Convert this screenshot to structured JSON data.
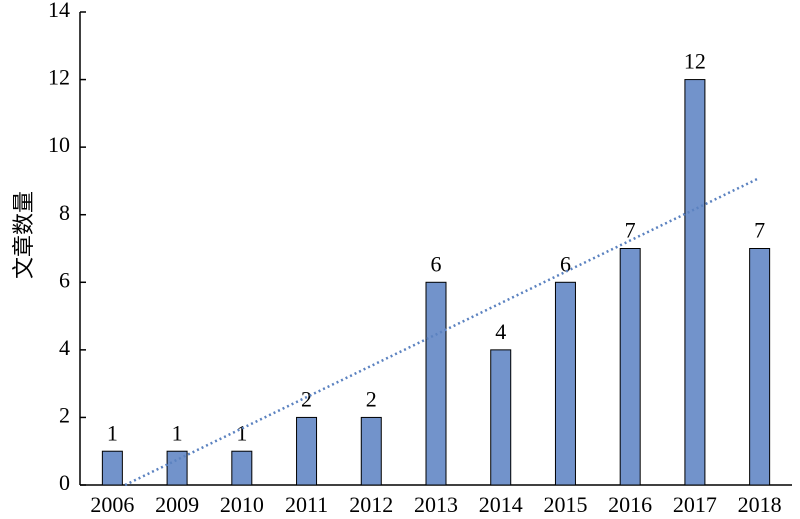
{
  "chart_data": {
    "type": "bar",
    "y_label": "文章数量",
    "categories": [
      "2006",
      "2009",
      "2010",
      "2011",
      "2012",
      "2013",
      "2014",
      "2015",
      "2016",
      "2017",
      "2018"
    ],
    "values": [
      1,
      1,
      1,
      2,
      2,
      6,
      4,
      6,
      7,
      12,
      7
    ],
    "color": "#7293cb",
    "ylim": [
      0,
      14
    ],
    "yticks": [
      0,
      2,
      4,
      6,
      8,
      10,
      12,
      14
    ],
    "trendline": "linear",
    "trendline_color": "#5b82c0"
  }
}
